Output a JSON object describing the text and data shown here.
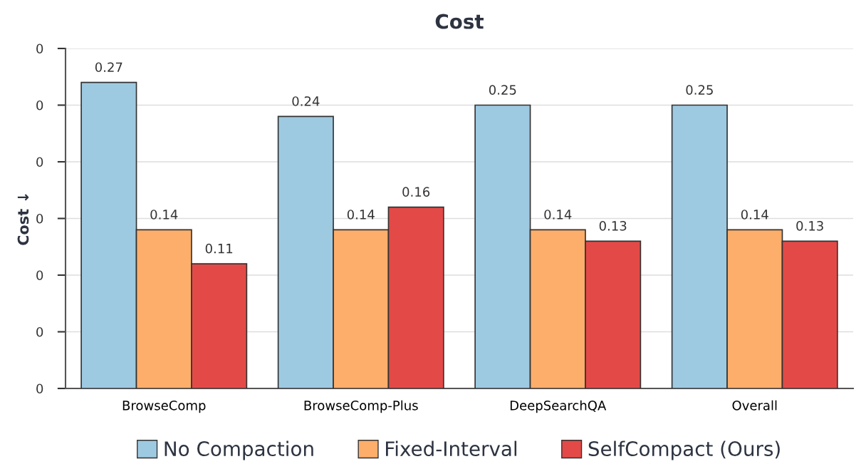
{
  "chart_data": {
    "type": "bar",
    "title": "Cost",
    "ylabel": "Cost ↓",
    "categories": [
      "BrowseComp",
      "BrowseComp-Plus",
      "DeepSearchQA",
      "Overall"
    ],
    "series": [
      {
        "name": "No Compaction",
        "color": "#9ecae1",
        "values": [
          0.27,
          0.24,
          0.25,
          0.25
        ]
      },
      {
        "name": "Fixed-Interval",
        "color": "#fdae6b",
        "values": [
          0.14,
          0.14,
          0.14,
          0.14
        ]
      },
      {
        "name": "SelfCompact (Ours)",
        "color": "#e34a47",
        "values": [
          0.11,
          0.16,
          0.13,
          0.13
        ]
      }
    ],
    "ylim": [
      0,
      0.3
    ],
    "yticks": [
      {
        "value": 0,
        "label": "0"
      },
      {
        "value": 0.05,
        "label": "0"
      },
      {
        "value": 0.1,
        "label": "0"
      },
      {
        "value": 0.15,
        "label": "0"
      },
      {
        "value": 0.2,
        "label": "0"
      },
      {
        "value": 0.25,
        "label": "0"
      },
      {
        "value": 0.3,
        "label": "0"
      }
    ],
    "grid": "y",
    "legend": "bottom",
    "data_labels": true
  }
}
